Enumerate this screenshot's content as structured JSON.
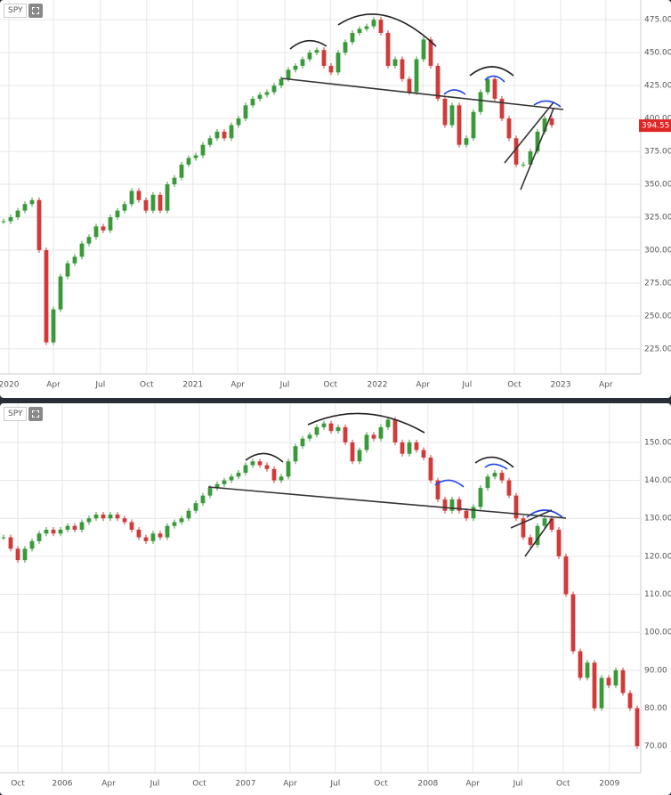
{
  "chart_data": [
    {
      "type": "candlestick",
      "symbol": "SPY",
      "last_price": 394.55,
      "xlim": [
        0,
        90
      ],
      "ylim": [
        206,
        490
      ],
      "xticks": [
        {
          "value": 1.25,
          "label": "2020"
        },
        {
          "value": 7.5,
          "label": "Apr"
        },
        {
          "value": 14.1,
          "label": "Jul"
        },
        {
          "value": 20.6,
          "label": "Oct"
        },
        {
          "value": 27.1,
          "label": "2021"
        },
        {
          "value": 33.4,
          "label": "Apr"
        },
        {
          "value": 40,
          "label": "Jul"
        },
        {
          "value": 46.4,
          "label": "Oct"
        },
        {
          "value": 53,
          "label": "2022"
        },
        {
          "value": 59.4,
          "label": "Apr"
        },
        {
          "value": 65.6,
          "label": "Jul"
        },
        {
          "value": 72.25,
          "label": "Oct"
        },
        {
          "value": 78.75,
          "label": "2023"
        },
        {
          "value": 85.1,
          "label": "Apr"
        }
      ],
      "yticks": [
        {
          "value": 225,
          "label": "225.00"
        },
        {
          "value": 250,
          "label": "250.00"
        },
        {
          "value": 275,
          "label": "275.00"
        },
        {
          "value": 300,
          "label": "300.00"
        },
        {
          "value": 325,
          "label": "325.00"
        },
        {
          "value": 350,
          "label": "350.00"
        },
        {
          "value": 375,
          "label": "375.00"
        },
        {
          "value": 400,
          "label": "400.00"
        },
        {
          "value": 425,
          "label": "425.00"
        },
        {
          "value": 450,
          "label": "450.00"
        },
        {
          "value": 475,
          "label": "475.00"
        }
      ],
      "up_color": "#3a9a3a",
      "down_color": "#d23a3a",
      "grid": true,
      "values": [
        322,
        325,
        330,
        335,
        338,
        300,
        230,
        255,
        280,
        290,
        295,
        305,
        310,
        318,
        315,
        325,
        330,
        335,
        345,
        338,
        330,
        342,
        330,
        350,
        355,
        365,
        370,
        372,
        380,
        385,
        390,
        385,
        395,
        400,
        410,
        415,
        418,
        420,
        425,
        430,
        437,
        440,
        445,
        450,
        452,
        440,
        435,
        450,
        458,
        465,
        468,
        470,
        475,
        465,
        440,
        445,
        430,
        420,
        445,
        460,
        440,
        415,
        395,
        410,
        380,
        385,
        405,
        420,
        430,
        415,
        400,
        385,
        365,
        365,
        375,
        390,
        400,
        395
      ]
    },
    {
      "type": "candlestick",
      "symbol": "SPY",
      "xlim": [
        0,
        90
      ],
      "ylim": [
        63,
        160.3
      ],
      "xticks": [
        {
          "value": 2.5,
          "label": "Oct"
        },
        {
          "value": 8.75,
          "label": "2006"
        },
        {
          "value": 15.25,
          "label": "Apr"
        },
        {
          "value": 21.75,
          "label": "Jul"
        },
        {
          "value": 28,
          "label": "Oct"
        },
        {
          "value": 34.5,
          "label": "2007"
        },
        {
          "value": 40.75,
          "label": "Apr"
        },
        {
          "value": 47.1,
          "label": "Jul"
        },
        {
          "value": 53.5,
          "label": "Oct"
        },
        {
          "value": 60.1,
          "label": "2008"
        },
        {
          "value": 66.4,
          "label": "Apr"
        },
        {
          "value": 72.75,
          "label": "Jul"
        },
        {
          "value": 79.1,
          "label": "Oct"
        },
        {
          "value": 85.6,
          "label": "2009"
        }
      ],
      "yticks": [
        {
          "value": 70,
          "label": "70.00"
        },
        {
          "value": 80,
          "label": "80.00"
        },
        {
          "value": 90,
          "label": "90.00"
        },
        {
          "value": 100,
          "label": "100.00"
        },
        {
          "value": 110,
          "label": "110.00"
        },
        {
          "value": 120,
          "label": "120.00"
        },
        {
          "value": 130,
          "label": "130.00"
        },
        {
          "value": 140,
          "label": "140.00"
        },
        {
          "value": 150,
          "label": "150.00"
        }
      ],
      "up_color": "#3a9a3a",
      "down_color": "#d23a3a",
      "grid": true,
      "values": [
        125,
        122,
        119,
        122,
        124,
        126,
        127,
        126,
        127,
        128,
        127,
        129,
        130,
        131,
        130,
        131,
        130,
        129,
        127,
        125,
        124,
        126,
        125,
        128,
        129,
        130,
        132,
        134,
        136,
        138,
        139,
        140,
        141,
        142,
        144,
        145,
        144,
        143,
        140,
        141,
        145,
        149,
        151,
        152,
        154,
        155,
        153,
        154,
        150,
        145,
        148,
        152,
        151,
        154,
        156,
        150,
        147,
        150,
        148,
        146,
        140,
        135,
        132,
        135,
        132,
        130,
        133,
        138,
        141,
        142,
        140,
        136,
        130,
        125,
        123,
        128,
        130,
        127,
        120,
        110,
        95,
        88,
        92,
        80,
        88,
        86,
        90,
        84,
        80,
        70
      ]
    }
  ]
}
